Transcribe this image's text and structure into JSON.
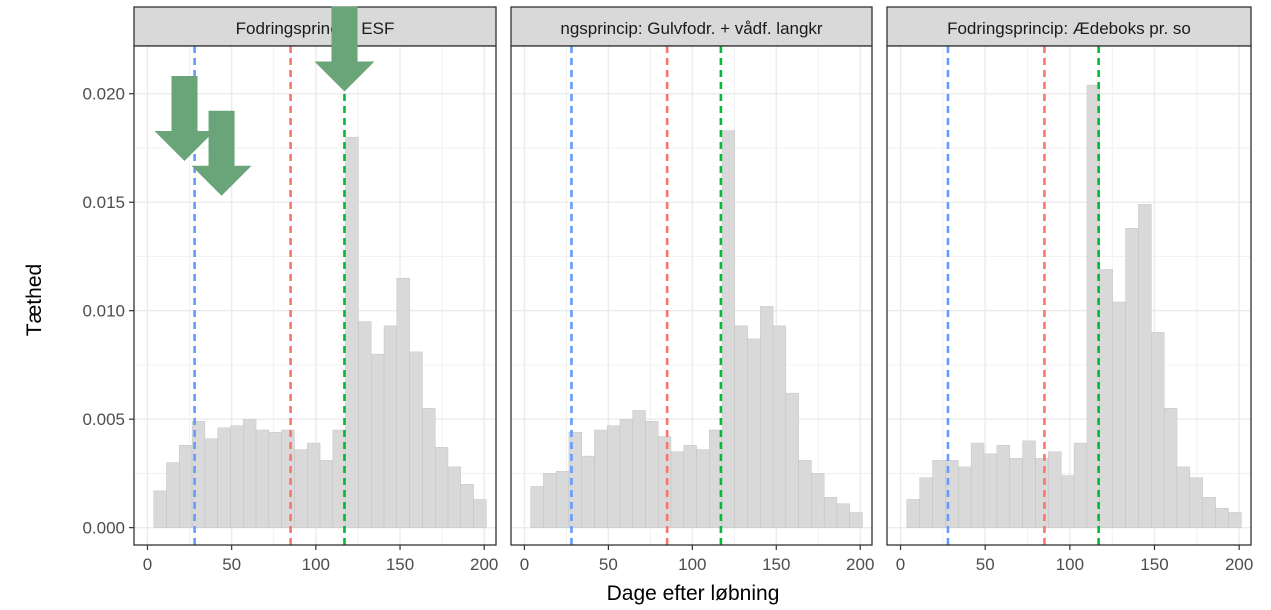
{
  "chart_data": {
    "type": "bar",
    "subtype": "faceted-histogram",
    "xlabel": "Dage efter løbning",
    "ylabel": "Tæthed",
    "xlim": [
      -8,
      207
    ],
    "ylim": [
      -0.0008,
      0.0222
    ],
    "x_ticks": [
      0,
      50,
      100,
      150,
      200
    ],
    "x_tick_labels": [
      "0",
      "50",
      "100",
      "150",
      "200"
    ],
    "y_ticks": [
      0,
      0.005,
      0.01,
      0.015,
      0.02
    ],
    "y_tick_labels": [
      "0.000",
      "0.005",
      "0.010",
      "0.015",
      "0.020"
    ],
    "bin_width": 7.6,
    "grid": true,
    "colors": {
      "bar_fill": "#d9d9d9",
      "bar_stroke": "#bdbdbd",
      "line_blue": "#619cff",
      "line_red": "#f8766d",
      "line_green": "#00ba38",
      "strip_fill": "#d9d9d9",
      "grid": "#ebebeb",
      "arrow": "#6aa57a"
    },
    "vlines": [
      {
        "x": 28,
        "color": "line_blue"
      },
      {
        "x": 85,
        "color": "line_red"
      },
      {
        "x": 117,
        "color": "line_green"
      }
    ],
    "facets": [
      {
        "strip": "Fodringsprincip: ESF",
        "bins": [
          {
            "x": 7.5,
            "y": 0.0017
          },
          {
            "x": 15.1,
            "y": 0.003
          },
          {
            "x": 22.7,
            "y": 0.0038
          },
          {
            "x": 30.3,
            "y": 0.0049
          },
          {
            "x": 37.9,
            "y": 0.0041
          },
          {
            "x": 45.5,
            "y": 0.0046
          },
          {
            "x": 53.1,
            "y": 0.0047
          },
          {
            "x": 60.7,
            "y": 0.005
          },
          {
            "x": 68.3,
            "y": 0.0045
          },
          {
            "x": 75.9,
            "y": 0.0044
          },
          {
            "x": 83.5,
            "y": 0.0045
          },
          {
            "x": 91.1,
            "y": 0.0036
          },
          {
            "x": 98.7,
            "y": 0.0039
          },
          {
            "x": 106.3,
            "y": 0.0031
          },
          {
            "x": 113.9,
            "y": 0.0045
          },
          {
            "x": 121.5,
            "y": 0.018
          },
          {
            "x": 129.1,
            "y": 0.0095
          },
          {
            "x": 136.7,
            "y": 0.008
          },
          {
            "x": 144.3,
            "y": 0.0093
          },
          {
            "x": 151.9,
            "y": 0.0115
          },
          {
            "x": 159.5,
            "y": 0.0081
          },
          {
            "x": 167.1,
            "y": 0.0055
          },
          {
            "x": 174.7,
            "y": 0.0037
          },
          {
            "x": 182.3,
            "y": 0.0028
          },
          {
            "x": 189.9,
            "y": 0.002
          },
          {
            "x": 197.5,
            "y": 0.0013
          }
        ]
      },
      {
        "strip": "ngsprincip: Gulvfodr. + vådf. langkr",
        "bins": [
          {
            "x": 7.5,
            "y": 0.0019
          },
          {
            "x": 15.1,
            "y": 0.0025
          },
          {
            "x": 22.7,
            "y": 0.0026
          },
          {
            "x": 30.3,
            "y": 0.0044
          },
          {
            "x": 37.9,
            "y": 0.0033
          },
          {
            "x": 45.5,
            "y": 0.0045
          },
          {
            "x": 53.1,
            "y": 0.0047
          },
          {
            "x": 60.7,
            "y": 0.005
          },
          {
            "x": 68.3,
            "y": 0.0054
          },
          {
            "x": 75.9,
            "y": 0.0049
          },
          {
            "x": 83.5,
            "y": 0.0042
          },
          {
            "x": 91.1,
            "y": 0.0035
          },
          {
            "x": 98.7,
            "y": 0.0038
          },
          {
            "x": 106.3,
            "y": 0.0036
          },
          {
            "x": 113.9,
            "y": 0.0045
          },
          {
            "x": 121.5,
            "y": 0.0183
          },
          {
            "x": 129.1,
            "y": 0.0093
          },
          {
            "x": 136.7,
            "y": 0.0087
          },
          {
            "x": 144.3,
            "y": 0.0102
          },
          {
            "x": 151.9,
            "y": 0.0093
          },
          {
            "x": 159.5,
            "y": 0.0062
          },
          {
            "x": 167.1,
            "y": 0.0031
          },
          {
            "x": 174.7,
            "y": 0.0025
          },
          {
            "x": 182.3,
            "y": 0.0014
          },
          {
            "x": 189.9,
            "y": 0.0011
          },
          {
            "x": 197.5,
            "y": 0.0007
          }
        ]
      },
      {
        "strip": "Fodringsprincip: Ædeboks pr. so",
        "bins": [
          {
            "x": 7.5,
            "y": 0.0013
          },
          {
            "x": 15.1,
            "y": 0.0023
          },
          {
            "x": 22.7,
            "y": 0.0031
          },
          {
            "x": 30.3,
            "y": 0.0031
          },
          {
            "x": 37.9,
            "y": 0.0028
          },
          {
            "x": 45.5,
            "y": 0.0039
          },
          {
            "x": 53.1,
            "y": 0.0034
          },
          {
            "x": 60.7,
            "y": 0.0038
          },
          {
            "x": 68.3,
            "y": 0.0032
          },
          {
            "x": 75.9,
            "y": 0.004
          },
          {
            "x": 83.5,
            "y": 0.0032
          },
          {
            "x": 91.1,
            "y": 0.0035
          },
          {
            "x": 98.7,
            "y": 0.0024
          },
          {
            "x": 106.3,
            "y": 0.0039
          },
          {
            "x": 113.9,
            "y": 0.0204
          },
          {
            "x": 121.5,
            "y": 0.0119
          },
          {
            "x": 129.1,
            "y": 0.0104
          },
          {
            "x": 136.7,
            "y": 0.0138
          },
          {
            "x": 144.3,
            "y": 0.0149
          },
          {
            "x": 151.9,
            "y": 0.009
          },
          {
            "x": 159.5,
            "y": 0.0055
          },
          {
            "x": 167.1,
            "y": 0.0028
          },
          {
            "x": 174.7,
            "y": 0.0023
          },
          {
            "x": 182.3,
            "y": 0.0014
          },
          {
            "x": 189.9,
            "y": 0.0009
          },
          {
            "x": 197.5,
            "y": 0.0007
          }
        ]
      }
    ],
    "annotations": [
      {
        "type": "arrow",
        "facet": 0,
        "x": 22,
        "y": 0.0169
      },
      {
        "type": "arrow",
        "facet": 0,
        "x": 44,
        "y": 0.0153
      },
      {
        "type": "arrow",
        "facet": 0,
        "x": 117,
        "y": 0.0201
      }
    ]
  }
}
